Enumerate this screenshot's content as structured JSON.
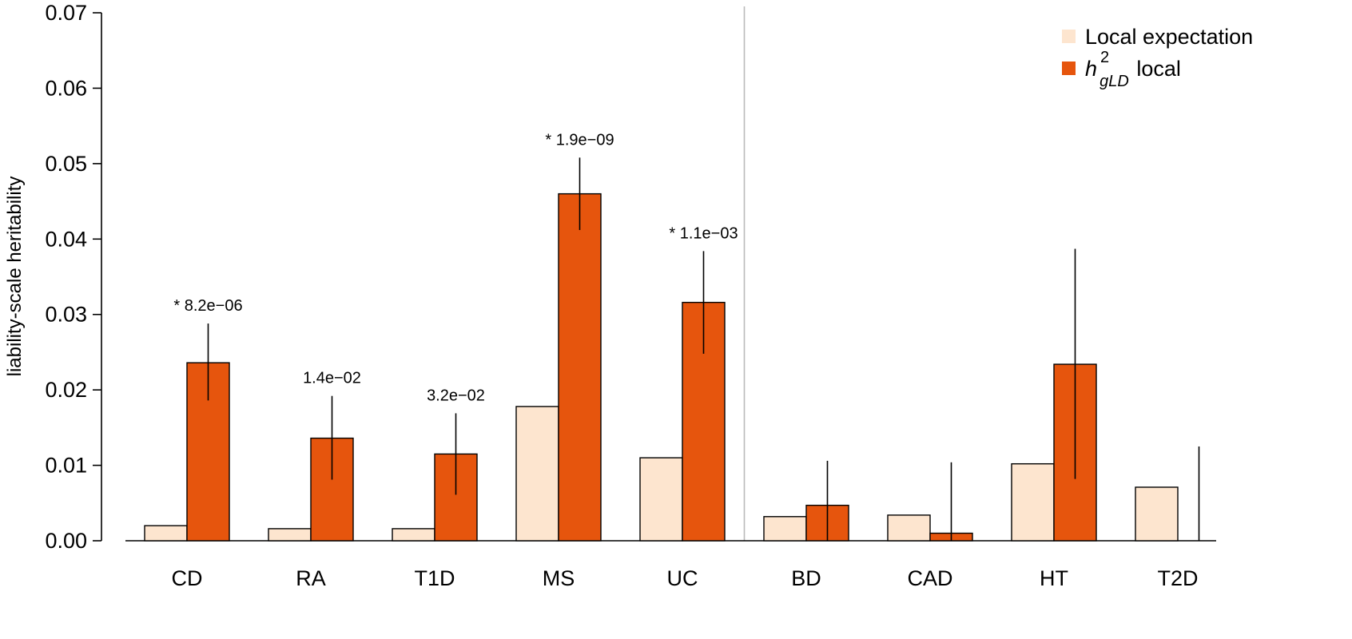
{
  "chart_data": {
    "type": "bar",
    "ylabel": "liability-scale heritability",
    "ylim": [
      0,
      0.07
    ],
    "yticks": [
      "0.00",
      "0.01",
      "0.02",
      "0.03",
      "0.04",
      "0.05",
      "0.06",
      "0.07"
    ],
    "categories": [
      "CD",
      "RA",
      "T1D",
      "MS",
      "UC",
      "BD",
      "CAD",
      "HT",
      "T2D"
    ],
    "group_separator_after": "UC",
    "legend_position": "top-right",
    "colors": {
      "expectation": "#fde5cf",
      "local": "#e6550d",
      "separator": "#bbbbbb"
    },
    "series": [
      {
        "name": "Local expectation",
        "values": [
          0.002,
          0.0016,
          0.0016,
          0.0178,
          0.011,
          0.0032,
          0.0034,
          0.0102,
          0.0071
        ]
      },
      {
        "name_main": "h",
        "name_sup": "2",
        "name_sub": "gLD",
        "name_tail": " local",
        "values": [
          0.0236,
          0.0136,
          0.0115,
          0.046,
          0.0316,
          0.0047,
          0.001,
          0.0234,
          0.0
        ],
        "err_low": [
          0.0186,
          0.0081,
          0.0061,
          0.0412,
          0.0248,
          0.0,
          0.0,
          0.0082,
          0.0
        ],
        "err_high": [
          0.0288,
          0.0192,
          0.0169,
          0.0508,
          0.0384,
          0.0106,
          0.0104,
          0.0387,
          0.0125
        ]
      }
    ],
    "annotations": [
      "* 8.2e−06",
      "1.4e−02",
      "3.2e−02",
      "* 1.9e−09",
      "* 1.1e−03",
      "",
      "",
      "",
      ""
    ]
  }
}
